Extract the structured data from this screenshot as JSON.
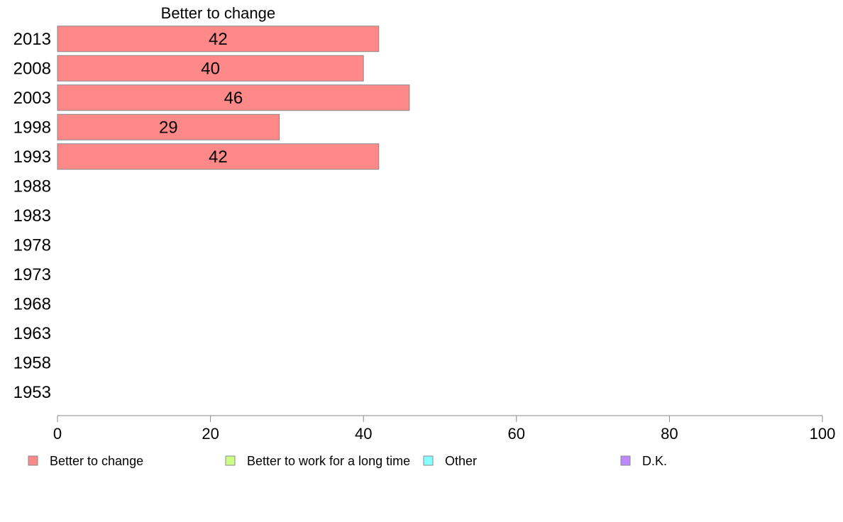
{
  "chart_data": {
    "type": "bar",
    "orientation": "horizontal",
    "series_title": "Better to change",
    "categories": [
      "2013",
      "2008",
      "2003",
      "1998",
      "1993",
      "1988",
      "1983",
      "1978",
      "1973",
      "1968",
      "1963",
      "1958",
      "1953"
    ],
    "series": [
      {
        "name": "Better to change",
        "color": "#ff8888",
        "values": [
          42,
          40,
          46,
          29,
          42,
          null,
          null,
          null,
          null,
          null,
          null,
          null,
          null
        ]
      }
    ],
    "xlim": [
      0,
      100
    ],
    "xticks": [
      0,
      20,
      40,
      60,
      80,
      100
    ],
    "grid": false,
    "legend": {
      "placement": "bottom",
      "entries": [
        {
          "label": "Better to change",
          "color": "#ff8888"
        },
        {
          "label": "Better to work for a long time",
          "color": "#ccff88"
        },
        {
          "label": "Other",
          "color": "#88ffff"
        },
        {
          "label": "D.K.",
          "color": "#bb88ff"
        }
      ]
    }
  }
}
